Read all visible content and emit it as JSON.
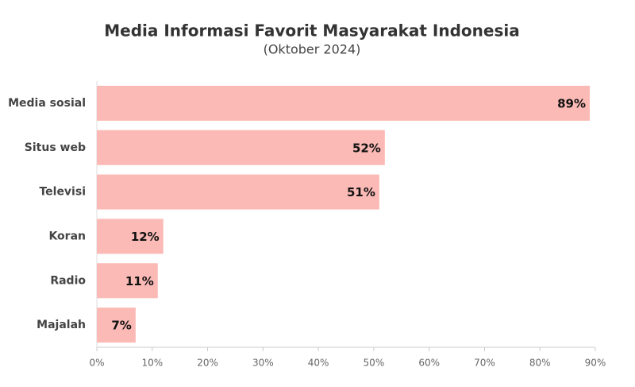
{
  "chart_data": {
    "type": "barh",
    "title": "Media Informasi Favorit Masyarakat Indonesia",
    "subtitle": "(Oktober 2024)",
    "categories": [
      "Media sosial",
      "Situs web",
      "Televisi",
      "Koran",
      "Radio",
      "Majalah"
    ],
    "values": [
      89,
      52,
      51,
      12,
      11,
      7
    ],
    "value_labels": [
      "89%",
      "52%",
      "51%",
      "12%",
      "11%",
      "7%"
    ],
    "color": "#fbbab6",
    "xlim": [
      0,
      90
    ],
    "xticks": [
      {
        "value": 0,
        "label": "0%"
      },
      {
        "value": 10,
        "label": "10%"
      },
      {
        "value": 20,
        "label": "20%"
      },
      {
        "value": 30,
        "label": "30%"
      },
      {
        "value": 40,
        "label": "40%"
      },
      {
        "value": 50,
        "label": "50%"
      },
      {
        "value": 60,
        "label": "60%"
      },
      {
        "value": 70,
        "label": "70%"
      },
      {
        "value": 80,
        "label": "80%"
      },
      {
        "value": 90,
        "label": "90%"
      }
    ],
    "grid": false
  }
}
